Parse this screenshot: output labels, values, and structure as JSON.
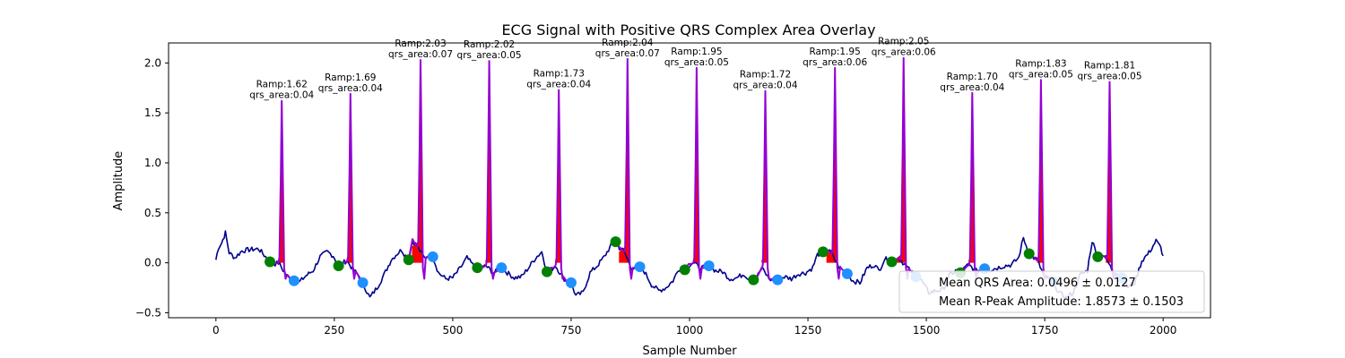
{
  "chart_data": {
    "type": "line",
    "title": "ECG Signal with Positive QRS Complex Area Overlay",
    "xlabel": "Sample Number",
    "ylabel": "Amplitude",
    "xlim": [
      -100,
      2100
    ],
    "ylim": [
      -0.55,
      2.2
    ],
    "xticks": [
      0,
      250,
      500,
      750,
      1000,
      1250,
      1500,
      1750,
      2000
    ],
    "yticks": [
      -0.5,
      0.0,
      0.5,
      1.0,
      1.5,
      2.0
    ],
    "xtick_labels": [
      "0",
      "250",
      "500",
      "750",
      "1000",
      "1250",
      "1500",
      "1750",
      "2000"
    ],
    "ytick_labels": [
      "−0.5",
      "0.0",
      "0.5",
      "1.0",
      "1.5",
      "2.0"
    ],
    "colors": {
      "signal": "#00008b",
      "qrs": "#9400d3",
      "area": "#ff0000",
      "onset": "#008000",
      "offset": "#1e90ff"
    },
    "beats": [
      {
        "r": 139,
        "ramp": 1.62,
        "area": 0.04,
        "on_x": 114,
        "on_y": 0.01,
        "off_x": 165,
        "off_y": -0.18,
        "ramp_label": "Ramp:1.62",
        "area_label": "qrs_area:0.04"
      },
      {
        "r": 284,
        "ramp": 1.69,
        "area": 0.04,
        "on_x": 259,
        "on_y": -0.03,
        "off_x": 310,
        "off_y": -0.2,
        "ramp_label": "Ramp:1.69",
        "area_label": "qrs_area:0.04"
      },
      {
        "r": 432,
        "ramp": 2.03,
        "area": 0.07,
        "on_x": 407,
        "on_y": 0.03,
        "off_x": 458,
        "off_y": 0.06,
        "ramp_label": "Ramp:2.03",
        "area_label": "qrs_area:0.07"
      },
      {
        "r": 577,
        "ramp": 2.02,
        "area": 0.05,
        "on_x": 552,
        "on_y": -0.05,
        "off_x": 603,
        "off_y": -0.05,
        "ramp_label": "Ramp:2.02",
        "area_label": "qrs_area:0.05"
      },
      {
        "r": 724,
        "ramp": 1.73,
        "area": 0.04,
        "on_x": 699,
        "on_y": -0.09,
        "off_x": 750,
        "off_y": -0.2,
        "ramp_label": "Ramp:1.73",
        "area_label": "qrs_area:0.04"
      },
      {
        "r": 869,
        "ramp": 2.04,
        "area": 0.07,
        "on_x": 844,
        "on_y": 0.21,
        "off_x": 895,
        "off_y": -0.04,
        "ramp_label": "Ramp:2.04",
        "area_label": "qrs_area:0.07"
      },
      {
        "r": 1015,
        "ramp": 1.95,
        "area": 0.05,
        "on_x": 990,
        "on_y": -0.07,
        "off_x": 1041,
        "off_y": -0.03,
        "ramp_label": "Ramp:1.95",
        "area_label": "qrs_area:0.05"
      },
      {
        "r": 1160,
        "ramp": 1.72,
        "area": 0.04,
        "on_x": 1135,
        "on_y": -0.17,
        "off_x": 1186,
        "off_y": -0.17,
        "ramp_label": "Ramp:1.72",
        "area_label": "qrs_area:0.04"
      },
      {
        "r": 1307,
        "ramp": 1.95,
        "area": 0.06,
        "on_x": 1282,
        "on_y": 0.11,
        "off_x": 1333,
        "off_y": -0.11,
        "ramp_label": "Ramp:1.95",
        "area_label": "qrs_area:0.06"
      },
      {
        "r": 1452,
        "ramp": 2.05,
        "area": 0.06,
        "on_x": 1427,
        "on_y": 0.01,
        "off_x": 1478,
        "off_y": -0.14,
        "ramp_label": "Ramp:2.05",
        "area_label": "qrs_area:0.06"
      },
      {
        "r": 1597,
        "ramp": 1.7,
        "area": 0.04,
        "on_x": 1572,
        "on_y": -0.1,
        "off_x": 1623,
        "off_y": -0.06,
        "ramp_label": "Ramp:1.70",
        "area_label": "qrs_area:0.04"
      },
      {
        "r": 1742,
        "ramp": 1.83,
        "area": 0.05,
        "on_x": 1717,
        "on_y": 0.09,
        "off_x": 1768,
        "off_y": -0.19,
        "ramp_label": "Ramp:1.83",
        "area_label": "qrs_area:0.05"
      },
      {
        "r": 1887,
        "ramp": 1.81,
        "area": 0.05,
        "on_x": 1862,
        "on_y": 0.06,
        "off_x": 1913,
        "off_y": -0.15,
        "ramp_label": "Ramp:1.81",
        "area_label": "qrs_area:0.05"
      }
    ],
    "baseline": [
      [
        0,
        0.03
      ],
      [
        5,
        0.15
      ],
      [
        12,
        0.2
      ],
      [
        20,
        0.3
      ],
      [
        28,
        0.1
      ],
      [
        40,
        0.05
      ],
      [
        55,
        0.12
      ],
      [
        70,
        0.13
      ],
      [
        90,
        0.14
      ],
      [
        105,
        0.06
      ],
      [
        115,
        0.01
      ],
      [
        125,
        -0.01
      ],
      [
        132,
        0.0
      ],
      [
        148,
        -0.12
      ],
      [
        160,
        -0.17
      ],
      [
        175,
        -0.2
      ],
      [
        190,
        -0.13
      ],
      [
        205,
        -0.08
      ],
      [
        220,
        0.06
      ],
      [
        235,
        0.11
      ],
      [
        248,
        0.07
      ],
      [
        258,
        -0.03
      ],
      [
        268,
        0.0
      ],
      [
        276,
        0.02
      ],
      [
        292,
        -0.08
      ],
      [
        300,
        -0.12
      ],
      [
        310,
        -0.2
      ],
      [
        325,
        -0.35
      ],
      [
        340,
        -0.25
      ],
      [
        355,
        -0.12
      ],
      [
        370,
        0.03
      ],
      [
        380,
        0.08
      ],
      [
        392,
        0.13
      ],
      [
        400,
        0.07
      ],
      [
        407,
        0.03
      ],
      [
        415,
        0.22
      ],
      [
        424,
        0.17
      ],
      [
        440,
        0.05
      ],
      [
        450,
        0.07
      ],
      [
        458,
        0.06
      ],
      [
        470,
        -0.1
      ],
      [
        485,
        -0.16
      ],
      [
        500,
        -0.15
      ],
      [
        515,
        -0.06
      ],
      [
        530,
        0.05
      ],
      [
        542,
        -0.02
      ],
      [
        552,
        -0.05
      ],
      [
        562,
        -0.05
      ],
      [
        570,
        -0.03
      ],
      [
        585,
        -0.1
      ],
      [
        595,
        -0.08
      ],
      [
        603,
        -0.05
      ],
      [
        615,
        -0.1
      ],
      [
        630,
        -0.15
      ],
      [
        645,
        -0.14
      ],
      [
        660,
        -0.05
      ],
      [
        675,
        0.05
      ],
      [
        688,
        0.11
      ],
      [
        699,
        -0.09
      ],
      [
        710,
        -0.06
      ],
      [
        717,
        -0.03
      ],
      [
        732,
        -0.14
      ],
      [
        742,
        -0.2
      ],
      [
        750,
        -0.2
      ],
      [
        760,
        -0.33
      ],
      [
        775,
        -0.3
      ],
      [
        790,
        -0.1
      ],
      [
        805,
        -0.03
      ],
      [
        820,
        0.06
      ],
      [
        835,
        0.18
      ],
      [
        844,
        0.21
      ],
      [
        852,
        0.15
      ],
      [
        861,
        0.12
      ],
      [
        877,
        -0.05
      ],
      [
        886,
        -0.05
      ],
      [
        895,
        -0.04
      ],
      [
        905,
        -0.09
      ],
      [
        920,
        -0.22
      ],
      [
        935,
        -0.28
      ],
      [
        950,
        -0.25
      ],
      [
        965,
        -0.18
      ],
      [
        978,
        -0.06
      ],
      [
        990,
        -0.07
      ],
      [
        1000,
        -0.02
      ],
      [
        1007,
        0.0
      ],
      [
        1023,
        -0.05
      ],
      [
        1033,
        -0.05
      ],
      [
        1041,
        -0.03
      ],
      [
        1055,
        -0.08
      ],
      [
        1070,
        -0.09
      ],
      [
        1085,
        -0.16
      ],
      [
        1100,
        -0.15
      ],
      [
        1115,
        -0.11
      ],
      [
        1125,
        -0.16
      ],
      [
        1135,
        -0.17
      ],
      [
        1145,
        -0.12
      ],
      [
        1152,
        -0.05
      ],
      [
        1168,
        -0.16
      ],
      [
        1178,
        -0.18
      ],
      [
        1186,
        -0.17
      ],
      [
        1200,
        -0.14
      ],
      [
        1215,
        -0.16
      ],
      [
        1230,
        -0.11
      ],
      [
        1245,
        -0.1
      ],
      [
        1260,
        -0.05
      ],
      [
        1270,
        0.08
      ],
      [
        1282,
        0.11
      ],
      [
        1292,
        0.12
      ],
      [
        1299,
        0.1
      ],
      [
        1315,
        -0.04
      ],
      [
        1325,
        -0.08
      ],
      [
        1333,
        -0.11
      ],
      [
        1345,
        -0.18
      ],
      [
        1360,
        -0.2
      ],
      [
        1375,
        -0.05
      ],
      [
        1390,
        -0.02
      ],
      [
        1400,
        -0.08
      ],
      [
        1412,
        0.04
      ],
      [
        1427,
        0.01
      ],
      [
        1437,
        0.05
      ],
      [
        1444,
        0.04
      ],
      [
        1460,
        -0.05
      ],
      [
        1470,
        -0.1
      ],
      [
        1478,
        -0.14
      ],
      [
        1490,
        -0.18
      ],
      [
        1505,
        -0.3
      ],
      [
        1520,
        -0.28
      ],
      [
        1535,
        -0.27
      ],
      [
        1550,
        -0.12
      ],
      [
        1562,
        -0.08
      ],
      [
        1572,
        -0.1
      ],
      [
        1582,
        -0.05
      ],
      [
        1589,
        -0.02
      ],
      [
        1605,
        -0.08
      ],
      [
        1615,
        -0.08
      ],
      [
        1623,
        -0.06
      ],
      [
        1635,
        -0.07
      ],
      [
        1650,
        -0.05
      ],
      [
        1665,
        -0.03
      ],
      [
        1680,
        -0.02
      ],
      [
        1695,
        0.05
      ],
      [
        1705,
        0.25
      ],
      [
        1717,
        0.09
      ],
      [
        1727,
        0.05
      ],
      [
        1734,
        0.03
      ],
      [
        1750,
        -0.15
      ],
      [
        1760,
        -0.15
      ],
      [
        1768,
        -0.19
      ],
      [
        1780,
        -0.3
      ],
      [
        1795,
        -0.35
      ],
      [
        1810,
        -0.3
      ],
      [
        1825,
        -0.12
      ],
      [
        1840,
        -0.08
      ],
      [
        1850,
        0.22
      ],
      [
        1862,
        0.06
      ],
      [
        1872,
        0.08
      ],
      [
        1879,
        0.05
      ],
      [
        1895,
        -0.1
      ],
      [
        1905,
        -0.12
      ],
      [
        1913,
        -0.15
      ],
      [
        1925,
        -0.24
      ],
      [
        1940,
        -0.2
      ],
      [
        1955,
        0.02
      ],
      [
        1970,
        0.1
      ],
      [
        1985,
        0.22
      ],
      [
        1995,
        0.15
      ],
      [
        2000,
        0.07
      ]
    ],
    "legend": {
      "position": "lower right",
      "entries": [
        "Mean QRS Area: 0.0496 ± 0.0127",
        "Mean R-Peak Amplitude: 1.8573 ± 0.1503"
      ]
    }
  }
}
